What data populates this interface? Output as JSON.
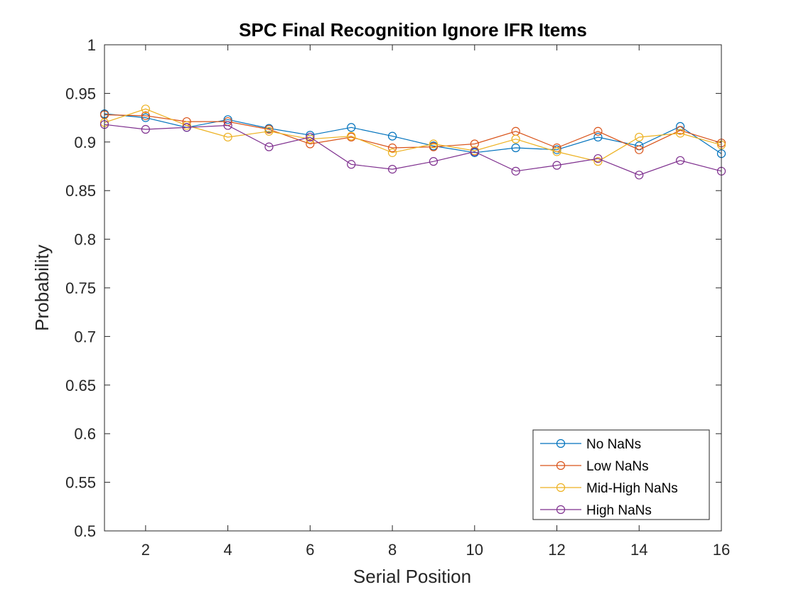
{
  "chart_data": {
    "type": "line",
    "title": "SPC Final Recognition Ignore IFR Items",
    "xlabel": "Serial Position",
    "ylabel": "Probability",
    "xlim": [
      1,
      16
    ],
    "ylim": [
      0.5,
      1
    ],
    "xticks": [
      2,
      4,
      6,
      8,
      10,
      12,
      14,
      16
    ],
    "xtick_labels": [
      "2",
      "4",
      "6",
      "8",
      "10",
      "12",
      "14",
      "16"
    ],
    "yticks": [
      0.5,
      0.55,
      0.6,
      0.65,
      0.7,
      0.75,
      0.8,
      0.85,
      0.9,
      0.95,
      1
    ],
    "ytick_labels": [
      "0.5",
      "0.55",
      "0.6",
      "0.65",
      "0.7",
      "0.75",
      "0.8",
      "0.85",
      "0.9",
      "0.95",
      "1"
    ],
    "grid": false,
    "legend_position": "bottom-right",
    "marker": "open-circle",
    "x": [
      1,
      2,
      3,
      4,
      5,
      6,
      7,
      8,
      9,
      10,
      11,
      12,
      13,
      14,
      15,
      16
    ],
    "series": [
      {
        "name": "No NaNs",
        "color": "#0072BD",
        "values": [
          0.929,
          0.925,
          0.915,
          0.923,
          0.914,
          0.907,
          0.915,
          0.906,
          0.896,
          0.889,
          0.894,
          0.892,
          0.905,
          0.896,
          0.916,
          0.888
        ]
      },
      {
        "name": "Low NaNs",
        "color": "#D95319",
        "values": [
          0.928,
          0.927,
          0.921,
          0.921,
          0.913,
          0.898,
          0.905,
          0.894,
          0.895,
          0.898,
          0.911,
          0.894,
          0.911,
          0.892,
          0.912,
          0.899
        ]
      },
      {
        "name": "Mid-High NaNs",
        "color": "#EDB120",
        "values": [
          0.92,
          0.934,
          0.917,
          0.905,
          0.911,
          0.903,
          0.906,
          0.889,
          0.898,
          0.891,
          0.903,
          0.89,
          0.88,
          0.905,
          0.909,
          0.897
        ]
      },
      {
        "name": "High NaNs",
        "color": "#7E2F8E",
        "values": [
          0.918,
          0.913,
          0.915,
          0.917,
          0.895,
          0.905,
          0.877,
          0.872,
          0.88,
          0.89,
          0.87,
          0.876,
          0.883,
          0.866,
          0.881,
          0.87
        ]
      }
    ]
  }
}
